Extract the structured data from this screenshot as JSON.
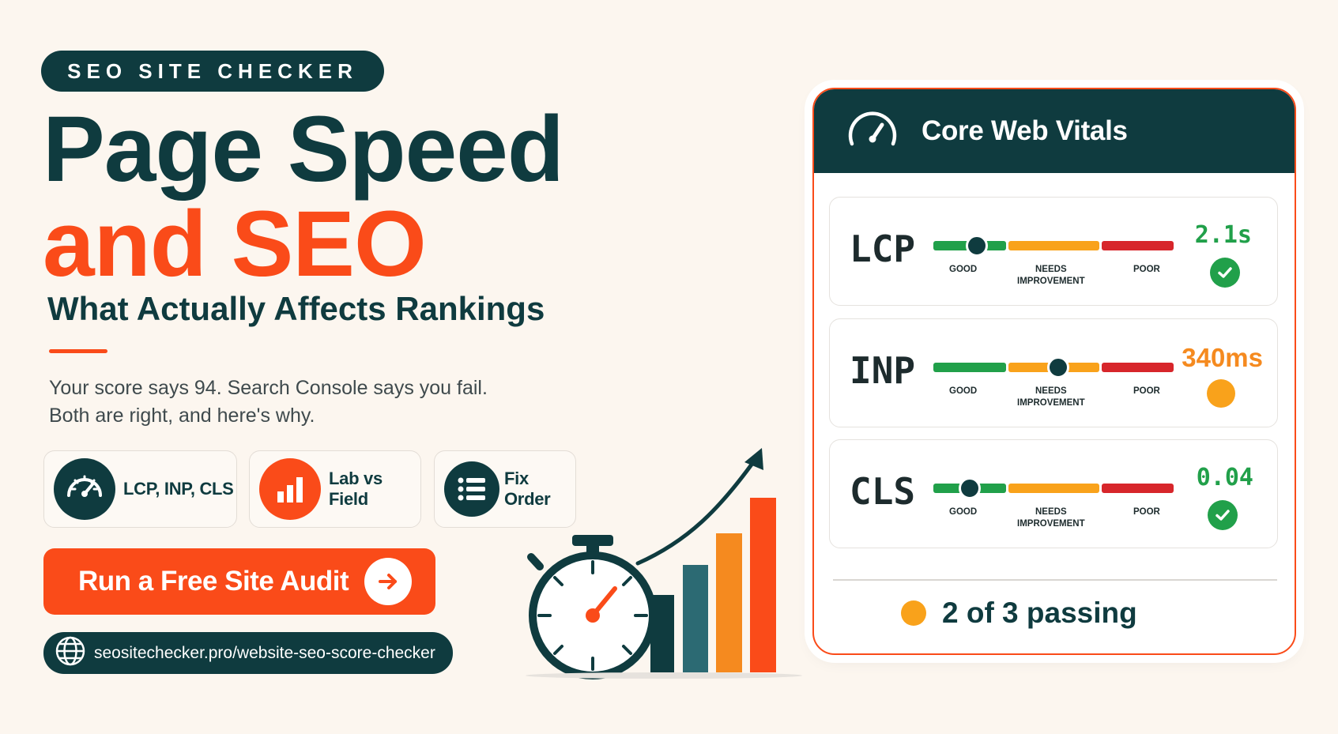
{
  "brand": {
    "label": "SEO SITE CHECKER"
  },
  "hero": {
    "title_line1": "Page Speed",
    "title_line2": "and SEO",
    "subtitle": "What Actually Affects Rankings",
    "desc_line1": "Your score says 94. Search Console says you fail.",
    "desc_line2": "Both are right, and here's why."
  },
  "features": [
    {
      "label": "LCP, INP, CLS",
      "icon": "gauge-icon"
    },
    {
      "label": "Lab vs Field",
      "icon": "bar-chart-icon"
    },
    {
      "label": "Fix Order",
      "icon": "list-icon"
    }
  ],
  "cta": {
    "label": "Run a Free Site Audit",
    "icon": "arrow-right-icon"
  },
  "url": {
    "text": "seositechecker.pro/website-seo-score-checker",
    "icon": "globe-icon"
  },
  "card": {
    "title": "Core Web Vitals",
    "icon": "gauge-icon",
    "scale": {
      "good": "GOOD",
      "needs_1": "NEEDS",
      "needs_2": "IMPROVEMENT",
      "poor": "POOR"
    },
    "metrics": [
      {
        "name": "LCP",
        "value": "2.1s",
        "status": "good",
        "position": 0.18
      },
      {
        "name": "INP",
        "value": "340ms",
        "status": "needs-improvement",
        "position": 0.52
      },
      {
        "name": "CLS",
        "value": "0.04",
        "status": "good",
        "position": 0.15
      }
    ],
    "summary": "2 of 3 passing"
  },
  "colors": {
    "navy": "#0f3b3f",
    "orange": "#fa4b19",
    "amber": "#f9a21b",
    "good": "#21a04a",
    "poor": "#d7262b",
    "background": "#fcf6ef"
  }
}
